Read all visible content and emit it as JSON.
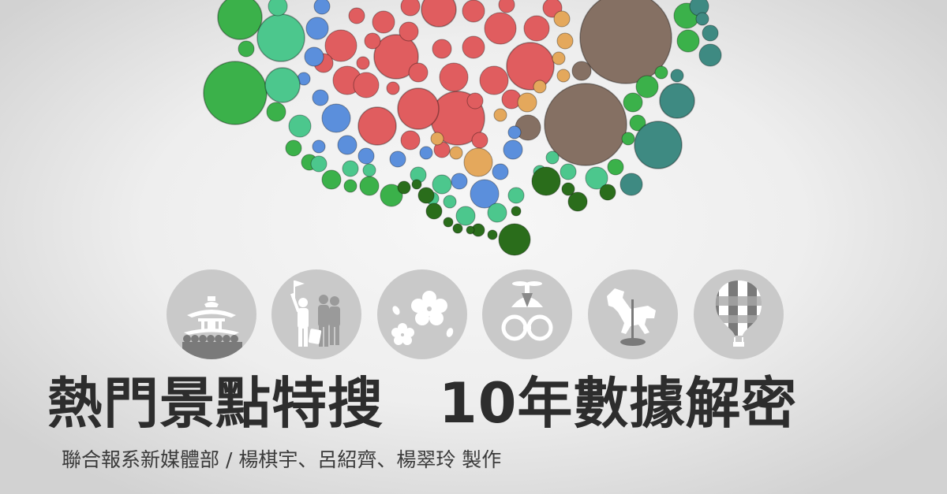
{
  "headline": {
    "part1": "熱門景點特搜",
    "part2": "10年數據解密"
  },
  "credit": "聯合報系新媒體部 / 楊棋宇、呂紹齊、楊翠玲  製作",
  "icons": [
    {
      "name": "temple-icon"
    },
    {
      "name": "tourist-group-icon"
    },
    {
      "name": "cherry-blossom-icon"
    },
    {
      "name": "kid-with-propeller-hat-icon"
    },
    {
      "name": "carousel-horse-icon"
    },
    {
      "name": "hot-air-balloon-icon"
    }
  ],
  "colors": {
    "red": "#e05d5f",
    "blue": "#5b8fdc",
    "orange": "#e4a85c",
    "brown": "#857063",
    "green": "#3bb14a",
    "mint": "#4cc78d",
    "teal": "#3e8a82",
    "dark_green": "#2a6d1b",
    "icon_bg": "#c9c9c9",
    "icon_fg": "#ffffff",
    "text": "#2d2d2d"
  }
}
